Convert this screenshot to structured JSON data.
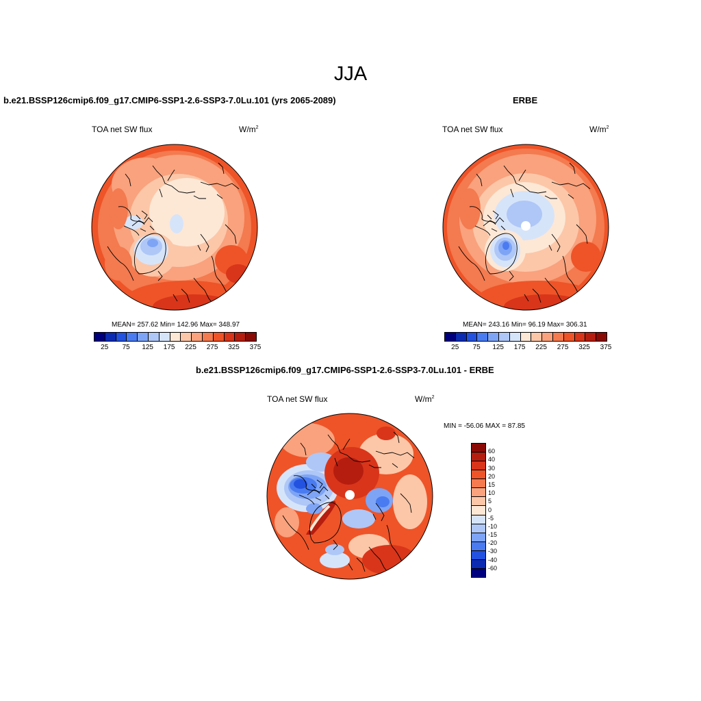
{
  "main_title": "JJA",
  "panels": {
    "model": {
      "title": "b.e21.BSSP126cmip6.f09_g17.CMIP6-SSP1-2.6-SSP3-7.0Lu.101 (yrs 2065-2089)",
      "var_label": "TOA net SW flux",
      "units_base": "W/m",
      "units_exp": "2",
      "stats": "MEAN= 257.62  Min= 142.96  Max= 348.97"
    },
    "obs": {
      "title": "ERBE",
      "var_label": "TOA net SW flux",
      "units_base": "W/m",
      "units_exp": "2",
      "stats": "MEAN= 243.16  Min=  96.19  Max= 306.31"
    },
    "diff": {
      "title": "b.e21.BSSP126cmip6.f09_g17.CMIP6-SSP1-2.6-SSP3-7.0Lu.101 - ERBE",
      "var_label": "TOA net SW flux",
      "units_base": "W/m",
      "units_exp": "2",
      "minmax": "MIN = -56.06 MAX =  87.85"
    }
  },
  "colorbar_abs": {
    "colors": [
      "#00007f",
      "#0b2bb3",
      "#2352e0",
      "#4a7bf0",
      "#7ea4f5",
      "#aec7f7",
      "#d6e4fa",
      "#fde8d6",
      "#fcc7a8",
      "#f9a27d",
      "#f47a4f",
      "#ee5428",
      "#d9351a",
      "#b51d0f",
      "#8a0b06"
    ],
    "labels": [
      "25",
      "75",
      "125",
      "175",
      "225",
      "275",
      "325",
      "375"
    ]
  },
  "colorbar_diff": {
    "colors": [
      "#8a0b06",
      "#b51d0f",
      "#d9351a",
      "#ee5428",
      "#f47a4f",
      "#f9a27d",
      "#fcc7a8",
      "#fde8d6",
      "#d6e4fa",
      "#aec7f7",
      "#7ea4f5",
      "#4a7bf0",
      "#2352e0",
      "#0b2bb3",
      "#00007f"
    ],
    "labels": [
      "60",
      "40",
      "30",
      "20",
      "15",
      "10",
      "5",
      "0",
      "-5",
      "-10",
      "-15",
      "-20",
      "-30",
      "-40",
      "-60"
    ]
  }
}
